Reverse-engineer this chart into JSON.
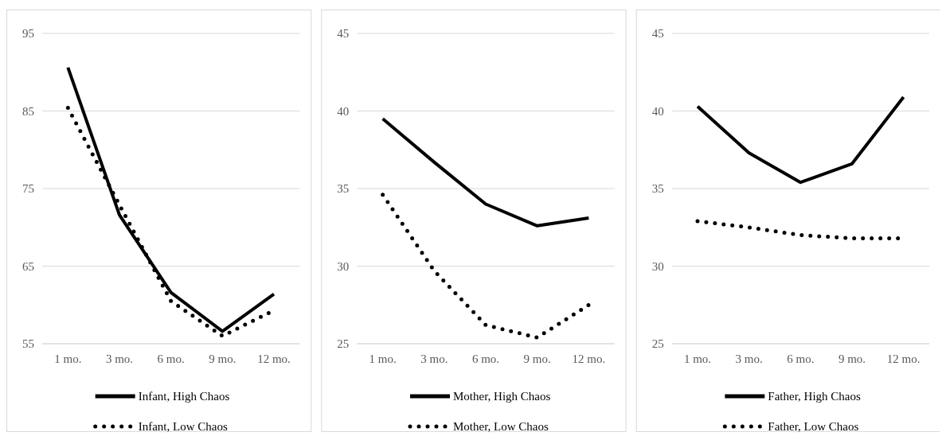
{
  "chart_data": [
    {
      "type": "line",
      "categories": [
        "1 mo.",
        "3 mo.",
        "6 mo.",
        "9 mo.",
        "12 mo."
      ],
      "ylim": [
        55,
        95
      ],
      "yticks": [
        55,
        65,
        75,
        85,
        95
      ],
      "grid": "y",
      "legend": "bottom",
      "series": [
        {
          "name": "Infant, High Chaos",
          "color": "#000000",
          "line_style": "solid",
          "values": [
            90.6,
            71.6,
            61.6,
            56.6,
            61.4
          ]
        },
        {
          "name": "Infant, Low Chaos",
          "color": "#000000",
          "line_style": "dotted",
          "values": [
            85.4,
            72.9,
            60.5,
            56,
            59.3
          ]
        }
      ]
    },
    {
      "type": "line",
      "categories": [
        "1 mo.",
        "3 mo.",
        "6 mo.",
        "9 mo.",
        "12 mo."
      ],
      "ylim": [
        25,
        45
      ],
      "yticks": [
        25,
        30,
        35,
        40,
        45
      ],
      "grid": "y",
      "legend": "bottom",
      "series": [
        {
          "name": "Mother, High Chaos",
          "color": "#000000",
          "line_style": "solid",
          "values": [
            39.5,
            36.7,
            34,
            32.6,
            33.1
          ]
        },
        {
          "name": "Mother, Low Chaos",
          "color": "#000000",
          "line_style": "dotted",
          "values": [
            34.6,
            29.7,
            26.2,
            25.4,
            27.5
          ]
        }
      ]
    },
    {
      "type": "line",
      "categories": [
        "1 mo.",
        "3 mo.",
        "6 mo.",
        "9 mo.",
        "12 mo."
      ],
      "ylim": [
        25,
        45
      ],
      "yticks": [
        25,
        30,
        35,
        40,
        45
      ],
      "grid": "y",
      "legend": "bottom",
      "series": [
        {
          "name": "Father, High Chaos",
          "color": "#000000",
          "line_style": "solid",
          "values": [
            40.3,
            37.3,
            35.4,
            36.6,
            40.9
          ]
        },
        {
          "name": "Father, Low Chaos",
          "color": "#000000",
          "line_style": "dotted",
          "values": [
            32.9,
            32.5,
            32,
            31.8,
            31.8
          ]
        }
      ]
    }
  ]
}
